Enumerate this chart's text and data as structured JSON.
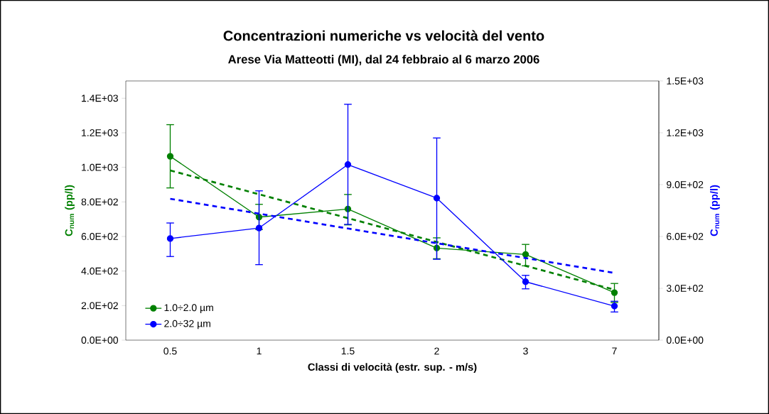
{
  "chart_data": {
    "type": "line",
    "title": "Concentrazioni numeriche vs velocità del vento",
    "subtitle": "Arese Via Matteotti (MI), dal 24 febbraio al 6 marzo 2006",
    "xlabel": "Classi di velocità (estr. sup. - m/s)",
    "ylabel": "C$_{num}$ (pp/l)",
    "y2label": "C$_{num}$ (pp/l)",
    "categories": [
      "0.5",
      "1",
      "1.5",
      "2",
      "3",
      "7"
    ],
    "marker": "circle",
    "legend": "bottom left",
    "grid": false,
    "ylim": [
      0,
      1500
    ],
    "yticks": [
      {
        "value": 0,
        "label": "0.0E+00"
      },
      {
        "value": 200,
        "label": "2.0E+02"
      },
      {
        "value": 400,
        "label": "4.0E+02"
      },
      {
        "value": 600,
        "label": "6.0E+02"
      },
      {
        "value": 800,
        "label": "8.0E+02"
      },
      {
        "value": 1000,
        "label": "1.0E+03"
      },
      {
        "value": 1200,
        "label": "1.2E+03"
      },
      {
        "value": 1400,
        "label": "1.4E+03"
      }
    ],
    "y2lim": [
      0,
      1500
    ],
    "y2ticks": [
      {
        "value": 0,
        "label": "0.0E+00"
      },
      {
        "value": 300,
        "label": "3.0E+02"
      },
      {
        "value": 600,
        "label": "6.0E+02"
      },
      {
        "value": 900,
        "label": "9.0E+02"
      },
      {
        "value": 1200,
        "label": "1.2E+03"
      },
      {
        "value": 1500,
        "label": "1.5E+03"
      }
    ],
    "series": [
      {
        "name": "1.0÷2.0 µm",
        "color": "#008000",
        "values": [
          1064,
          712,
          759,
          533,
          496,
          275
        ],
        "errors": [
          [
            881,
            1247
          ],
          [
            640,
            786
          ],
          [
            667,
            843
          ],
          [
            471,
            592
          ],
          [
            430,
            554
          ],
          [
            218,
            328
          ]
        ]
      },
      {
        "name": "2.0÷32 µm",
        "color": "#0000ff",
        "axis": "y2",
        "values": [
          588,
          649,
          1016,
          822,
          338,
          197
        ],
        "errors": [
          [
            484,
            678
          ],
          [
            437,
            864
          ],
          [
            670,
            1365
          ],
          [
            468,
            1170
          ],
          [
            297,
            375
          ],
          [
            163,
            225
          ]
        ]
      },
      {
        "color": "#008000",
        "line_style": "dashed",
        "marker": "none",
        "values": [
          982,
          844,
          706,
          568,
          430,
          292
        ]
      },
      {
        "color": "#0000ff",
        "axis": "y2",
        "line_style": "dashed",
        "marker": "none",
        "values": [
          818,
          732,
          646,
          561,
          475,
          389
        ]
      }
    ]
  }
}
